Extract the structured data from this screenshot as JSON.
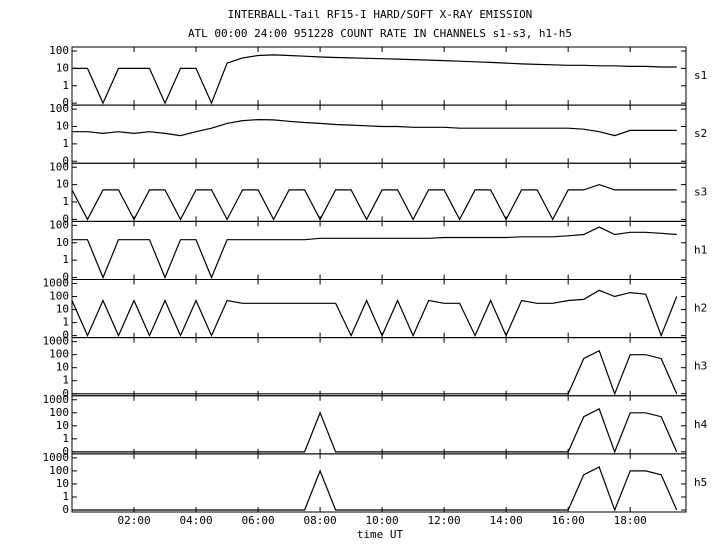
{
  "chart_data": [
    {
      "type": "line",
      "title": "INTERBALL-Tail RF15-I HARD/SOFT X-RAY EMISSION",
      "subtitle": "ATL 00:00 24:00 951228  COUNT RATE IN CHANNELS s1-s3, h1-h5",
      "yscale": "log",
      "x": [
        0,
        0.5,
        1,
        1.5,
        2,
        2.5,
        3,
        3.5,
        4,
        4.5,
        5,
        5.5,
        6,
        6.5,
        7,
        7.5,
        8,
        8.5,
        9,
        9.5,
        10,
        10.5,
        11,
        11.5,
        12,
        12.5,
        13,
        13.5,
        14,
        14.5,
        15,
        15.5,
        16,
        16.5,
        17,
        17.5,
        18,
        18.5,
        19,
        19.5
      ],
      "xlim": [
        0,
        19.8
      ],
      "ylim": [
        0,
        100
      ],
      "yticks": [
        100,
        10,
        1,
        0
      ],
      "series": [
        {
          "name": "s1",
          "color": "#000000",
          "values": [
            10,
            10,
            0,
            10,
            10,
            10,
            0,
            10,
            10,
            0,
            20,
            40,
            55,
            60,
            55,
            50,
            45,
            42,
            40,
            38,
            36,
            34,
            32,
            30,
            28,
            26,
            24,
            22,
            20,
            18,
            17,
            16,
            15,
            15,
            14,
            14,
            13,
            13,
            12,
            12
          ]
        }
      ]
    },
    {
      "type": "line",
      "yscale": "log",
      "x": [
        0,
        0.5,
        1,
        1.5,
        2,
        2.5,
        3,
        3.5,
        4,
        4.5,
        5,
        5.5,
        6,
        6.5,
        7,
        7.5,
        8,
        8.5,
        9,
        9.5,
        10,
        10.5,
        11,
        11.5,
        12,
        12.5,
        13,
        13.5,
        14,
        14.5,
        15,
        15.5,
        16,
        16.5,
        17,
        17.5,
        18,
        18.5,
        19,
        19.5
      ],
      "xlim": [
        0,
        19.8
      ],
      "ylim": [
        0,
        100
      ],
      "yticks": [
        100,
        10,
        1,
        0
      ],
      "series": [
        {
          "name": "s2",
          "color": "#000000",
          "values": [
            5,
            5,
            4,
            5,
            4,
            5,
            4,
            3,
            5,
            8,
            15,
            22,
            25,
            24,
            20,
            17,
            15,
            13,
            12,
            11,
            10,
            10,
            9,
            9,
            9,
            8,
            8,
            8,
            8,
            8,
            8,
            8,
            8,
            7,
            5,
            3,
            6,
            6,
            6,
            6
          ]
        }
      ]
    },
    {
      "type": "line",
      "yscale": "log",
      "x": [
        0,
        0.5,
        1,
        1.5,
        2,
        2.5,
        3,
        3.5,
        4,
        4.5,
        5,
        5.5,
        6,
        6.5,
        7,
        7.5,
        8,
        8.5,
        9,
        9.5,
        10,
        10.5,
        11,
        11.5,
        12,
        12.5,
        13,
        13.5,
        14,
        14.5,
        15,
        15.5,
        16,
        16.5,
        17,
        17.5,
        18,
        18.5,
        19,
        19.5
      ],
      "xlim": [
        0,
        19.8
      ],
      "ylim": [
        0,
        100
      ],
      "yticks": [
        100,
        10,
        1,
        0
      ],
      "series": [
        {
          "name": "s3",
          "color": "#000000",
          "values": [
            5,
            0,
            5,
            5,
            0,
            5,
            5,
            0,
            5,
            5,
            0,
            5,
            5,
            0,
            5,
            5,
            0,
            5,
            5,
            0,
            5,
            5,
            0,
            5,
            5,
            0,
            5,
            5,
            0,
            5,
            5,
            0,
            5,
            5,
            10,
            5,
            5,
            5,
            5,
            5
          ]
        }
      ]
    },
    {
      "type": "line",
      "yscale": "log",
      "x": [
        0,
        0.5,
        1,
        1.5,
        2,
        2.5,
        3,
        3.5,
        4,
        4.5,
        5,
        5.5,
        6,
        6.5,
        7,
        7.5,
        8,
        8.5,
        9,
        9.5,
        10,
        10.5,
        11,
        11.5,
        12,
        12.5,
        13,
        13.5,
        14,
        14.5,
        15,
        15.5,
        16,
        16.5,
        17,
        17.5,
        18,
        18.5,
        19,
        19.5
      ],
      "xlim": [
        0,
        19.8
      ],
      "ylim": [
        0,
        100
      ],
      "yticks": [
        100,
        10,
        1,
        0
      ],
      "series": [
        {
          "name": "h1",
          "color": "#000000",
          "values": [
            15,
            15,
            0,
            15,
            15,
            15,
            0,
            15,
            15,
            0,
            15,
            15,
            15,
            15,
            15,
            15,
            18,
            18,
            18,
            18,
            18,
            18,
            18,
            18,
            20,
            20,
            20,
            20,
            20,
            22,
            22,
            22,
            25,
            30,
            80,
            30,
            40,
            40,
            35,
            30
          ]
        }
      ]
    },
    {
      "type": "line",
      "yscale": "log",
      "x": [
        0,
        0.5,
        1,
        1.5,
        2,
        2.5,
        3,
        3.5,
        4,
        4.5,
        5,
        5.5,
        6,
        6.5,
        7,
        7.5,
        8,
        8.5,
        9,
        9.5,
        10,
        10.5,
        11,
        11.5,
        12,
        12.5,
        13,
        13.5,
        14,
        14.5,
        15,
        15.5,
        16,
        16.5,
        17,
        17.5,
        18,
        18.5,
        19,
        19.5
      ],
      "xlim": [
        0,
        19.8
      ],
      "ylim": [
        0,
        1000
      ],
      "yticks": [
        1000,
        100,
        10,
        1,
        0
      ],
      "series": [
        {
          "name": "h2",
          "color": "#000000",
          "values": [
            50,
            0,
            50,
            0,
            50,
            0,
            50,
            0,
            50,
            0,
            50,
            30,
            30,
            30,
            30,
            30,
            30,
            30,
            0,
            50,
            0,
            50,
            0,
            50,
            30,
            30,
            0,
            50,
            0,
            50,
            30,
            30,
            50,
            60,
            300,
            100,
            200,
            150,
            0,
            100
          ]
        }
      ]
    },
    {
      "type": "line",
      "yscale": "log",
      "x": [
        0,
        0.5,
        1,
        1.5,
        2,
        2.5,
        3,
        3.5,
        4,
        4.5,
        5,
        5.5,
        6,
        6.5,
        7,
        7.5,
        8,
        8.5,
        9,
        9.5,
        10,
        10.5,
        11,
        11.5,
        12,
        12.5,
        13,
        13.5,
        14,
        14.5,
        15,
        15.5,
        16,
        16.5,
        17,
        17.5,
        18,
        18.5,
        19,
        19.5
      ],
      "xlim": [
        0,
        19.8
      ],
      "ylim": [
        0,
        1000
      ],
      "yticks": [
        1000,
        100,
        10,
        1,
        0
      ],
      "series": [
        {
          "name": "h3",
          "color": "#000000",
          "values": [
            0,
            0,
            0,
            0,
            0,
            0,
            0,
            0,
            0,
            0,
            0,
            0,
            0,
            0,
            0,
            0,
            0,
            0,
            0,
            0,
            0,
            0,
            0,
            0,
            0,
            0,
            0,
            0,
            0,
            0,
            0,
            0,
            0,
            50,
            200,
            0,
            100,
            100,
            50,
            0
          ]
        }
      ]
    },
    {
      "type": "line",
      "yscale": "log",
      "x": [
        0,
        0.5,
        1,
        1.5,
        2,
        2.5,
        3,
        3.5,
        4,
        4.5,
        5,
        5.5,
        6,
        6.5,
        7,
        7.5,
        8,
        8.5,
        9,
        9.5,
        10,
        10.5,
        11,
        11.5,
        12,
        12.5,
        13,
        13.5,
        14,
        14.5,
        15,
        15.5,
        16,
        16.5,
        17,
        17.5,
        18,
        18.5,
        19,
        19.5
      ],
      "xlim": [
        0,
        19.8
      ],
      "ylim": [
        0,
        1000
      ],
      "yticks": [
        1000,
        100,
        10,
        1,
        0
      ],
      "series": [
        {
          "name": "h4",
          "color": "#000000",
          "values": [
            0,
            0,
            0,
            0,
            0,
            0,
            0,
            0,
            0,
            0,
            0,
            0,
            0,
            0,
            0,
            0,
            100,
            0,
            0,
            0,
            0,
            0,
            0,
            0,
            0,
            0,
            0,
            0,
            0,
            0,
            0,
            0,
            0,
            50,
            200,
            0,
            100,
            100,
            50,
            0
          ]
        }
      ]
    },
    {
      "type": "line",
      "yscale": "log",
      "xlabel": "time UT",
      "x": [
        0,
        0.5,
        1,
        1.5,
        2,
        2.5,
        3,
        3.5,
        4,
        4.5,
        5,
        5.5,
        6,
        6.5,
        7,
        7.5,
        8,
        8.5,
        9,
        9.5,
        10,
        10.5,
        11,
        11.5,
        12,
        12.5,
        13,
        13.5,
        14,
        14.5,
        15,
        15.5,
        16,
        16.5,
        17,
        17.5,
        18,
        18.5,
        19,
        19.5
      ],
      "xlim": [
        0,
        19.8
      ],
      "ylim": [
        0,
        1000
      ],
      "yticks": [
        1000,
        100,
        10,
        1,
        0
      ],
      "xticks": [
        {
          "value": 2,
          "label": "02:00"
        },
        {
          "value": 4,
          "label": "04:00"
        },
        {
          "value": 6,
          "label": "06:00"
        },
        {
          "value": 8,
          "label": "08:00"
        },
        {
          "value": 10,
          "label": "10:00"
        },
        {
          "value": 12,
          "label": "12:00"
        },
        {
          "value": 14,
          "label": "14:00"
        },
        {
          "value": 16,
          "label": "16:00"
        },
        {
          "value": 18,
          "label": "18:00"
        }
      ],
      "series": [
        {
          "name": "h5",
          "color": "#000000",
          "values": [
            0,
            0,
            0,
            0,
            0,
            0,
            0,
            0,
            0,
            0,
            0,
            0,
            0,
            0,
            0,
            0,
            100,
            0,
            0,
            0,
            0,
            0,
            0,
            0,
            0,
            0,
            0,
            0,
            0,
            0,
            0,
            0,
            0,
            50,
            200,
            0,
            100,
            100,
            50,
            0
          ]
        }
      ]
    }
  ]
}
